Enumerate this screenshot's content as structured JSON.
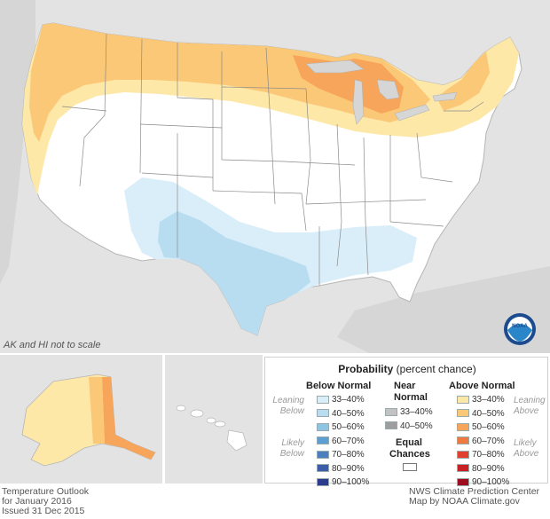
{
  "scale_note": "AK and HI not to scale",
  "legend": {
    "title_bold": "Probability",
    "title_rest": "(percent chance)",
    "below_normal": {
      "heading": "Below Normal",
      "rows": [
        {
          "label": "33–40%",
          "color": "#d9eef8"
        },
        {
          "label": "40–50%",
          "color": "#b8ddf0"
        },
        {
          "label": "50–60%",
          "color": "#8ec4e4"
        },
        {
          "label": "60–70%",
          "color": "#5e9fd3"
        },
        {
          "label": "70–80%",
          "color": "#4b7fc0"
        },
        {
          "label": "80–90%",
          "color": "#3b5daa"
        },
        {
          "label": "90–100%",
          "color": "#2c3b8e"
        }
      ],
      "leaning_label": [
        "Leaning",
        "Below"
      ],
      "likely_label": [
        "Likely",
        "Below"
      ]
    },
    "near_normal": {
      "heading": [
        "Near",
        "Normal"
      ],
      "rows": [
        {
          "label": "33–40%",
          "color": "#c2c2c2"
        },
        {
          "label": "40–50%",
          "color": "#9e9e9e"
        }
      ]
    },
    "equal_chances": {
      "heading": [
        "Equal",
        "Chances"
      ],
      "color": "#ffffff"
    },
    "above_normal": {
      "heading": "Above Normal",
      "rows": [
        {
          "label": "33–40%",
          "color": "#fde8a8"
        },
        {
          "label": "40–50%",
          "color": "#fbc878"
        },
        {
          "label": "50–60%",
          "color": "#f6a55a"
        },
        {
          "label": "60–70%",
          "color": "#ef7a3f"
        },
        {
          "label": "70–80%",
          "color": "#e2402f"
        },
        {
          "label": "80–90%",
          "color": "#c92026"
        },
        {
          "label": "90–100%",
          "color": "#9c0d1f"
        }
      ],
      "leaning_label": [
        "Leaning",
        "Above"
      ],
      "likely_label": [
        "Likely",
        "Above"
      ]
    }
  },
  "footer_left": [
    "Temperature Outlook",
    "for January 2016",
    "Issued 31 Dec 2015"
  ],
  "footer_right": [
    "NWS Climate Prediction Center",
    "Map by NOAA Climate.gov"
  ],
  "logo_text": "NOAA",
  "colors": {
    "background_land": "#e3e3e3",
    "equal_chances": "#ffffff",
    "above_33_40": "#fde8a8",
    "above_40_50": "#fbc878",
    "above_50_60": "#f6a55a",
    "above_60_70": "#ef7a3f",
    "below_33_40": "#d9eef8",
    "below_40_50": "#b8ddf0"
  }
}
